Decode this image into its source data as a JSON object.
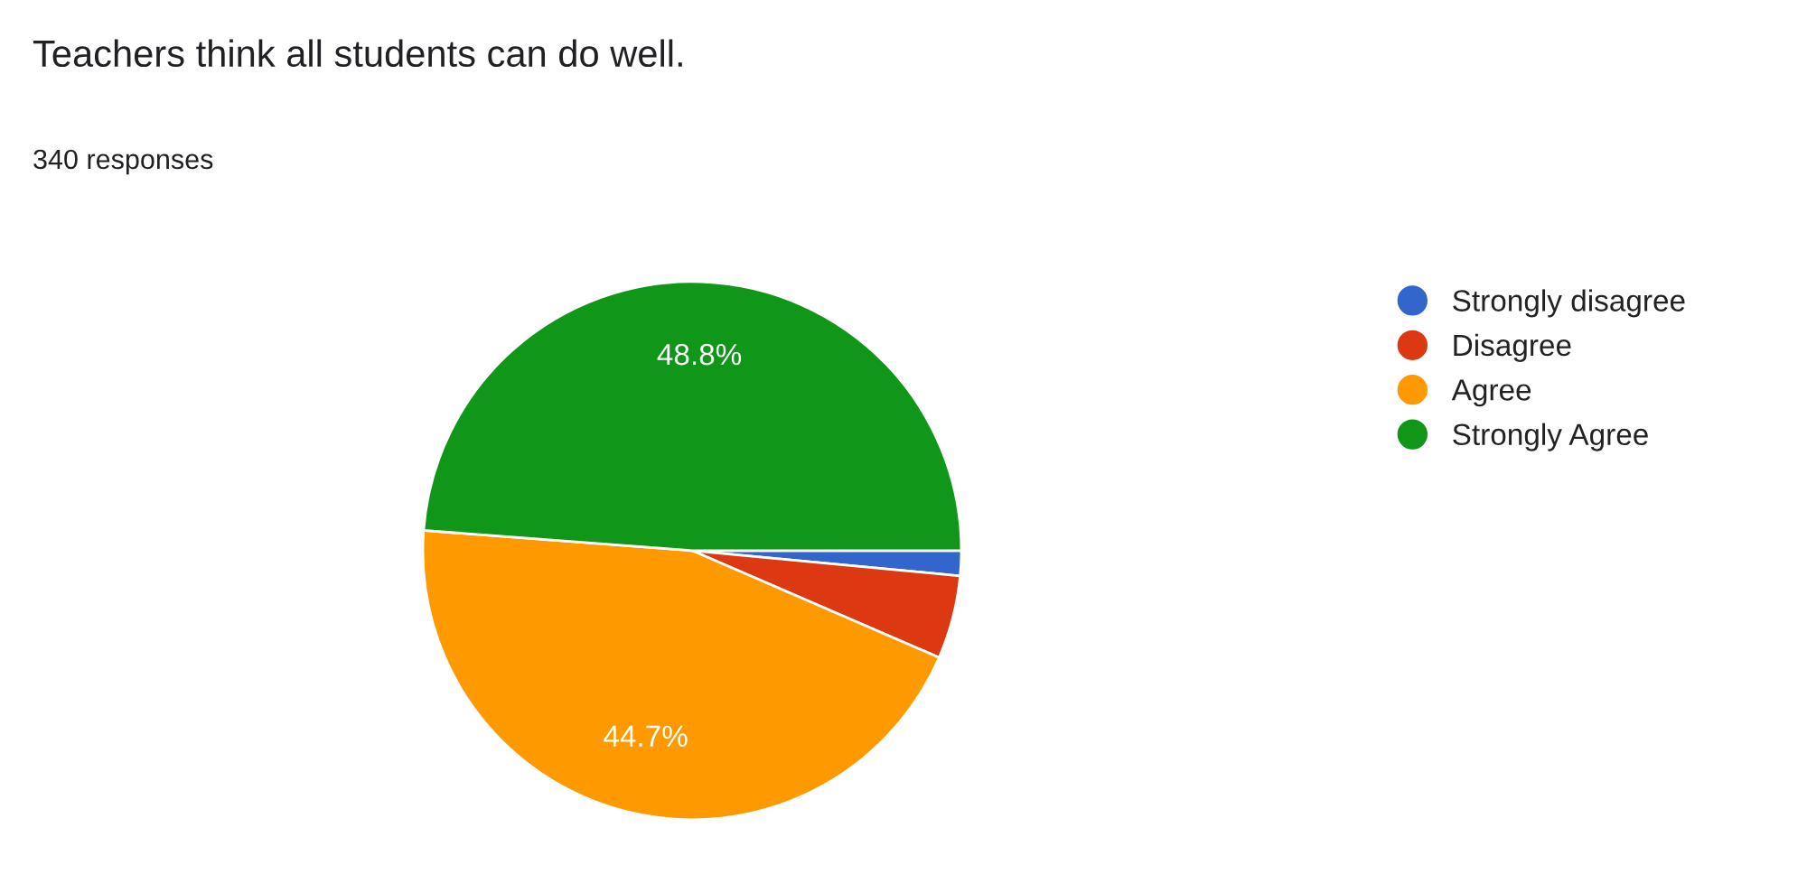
{
  "chart_data": {
    "type": "pie",
    "title": "Teachers think all students can do well.",
    "subtitle": "340 responses",
    "categories": [
      "Strongly disagree",
      "Disagree",
      "Agree",
      "Strongly Agree"
    ],
    "values": [
      1.5,
      5.0,
      44.7,
      48.8
    ],
    "colors": [
      "#3366cc",
      "#dc3912",
      "#ff9900",
      "#109618"
    ],
    "value_labels": [
      null,
      null,
      "44.7%",
      "48.8%"
    ],
    "legend": "right"
  }
}
